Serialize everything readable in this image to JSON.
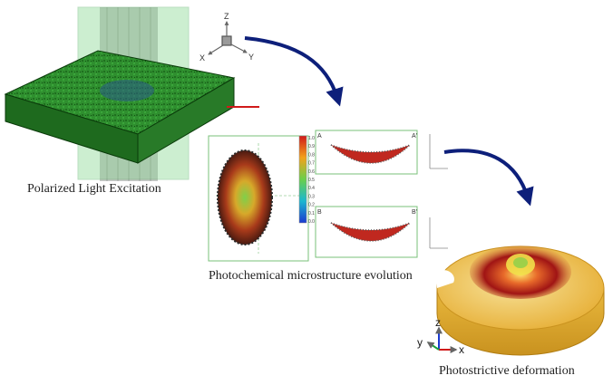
{
  "panels": {
    "excitation": {
      "caption": "Polarized Light Excitation",
      "axis_labels": {
        "z": "Z",
        "x": "X",
        "y": "Y"
      }
    },
    "evolution": {
      "caption": "Photochemical microstructure evolution",
      "colorbar_ticks": [
        "1.0",
        "0.9",
        "0.8",
        "0.7",
        "0.6",
        "0.5",
        "0.4",
        "0.3",
        "0.2",
        "0.1",
        "0.0"
      ],
      "section_labels": {
        "top_left": "A",
        "top_right": "A'",
        "bottom_left": "B",
        "bottom_right": "B'"
      }
    },
    "deformation": {
      "caption": "Photostrictive deformation",
      "axis_labels": {
        "z": "z",
        "y": "y",
        "x": "x"
      }
    }
  },
  "colors": {
    "laminate_green": "#2f8f2f",
    "beam_gray": "#a9a9a9",
    "arrow_navy": "#0d1f7a",
    "disk_gold": "#e8b43a",
    "deform_red": "#b01717"
  }
}
